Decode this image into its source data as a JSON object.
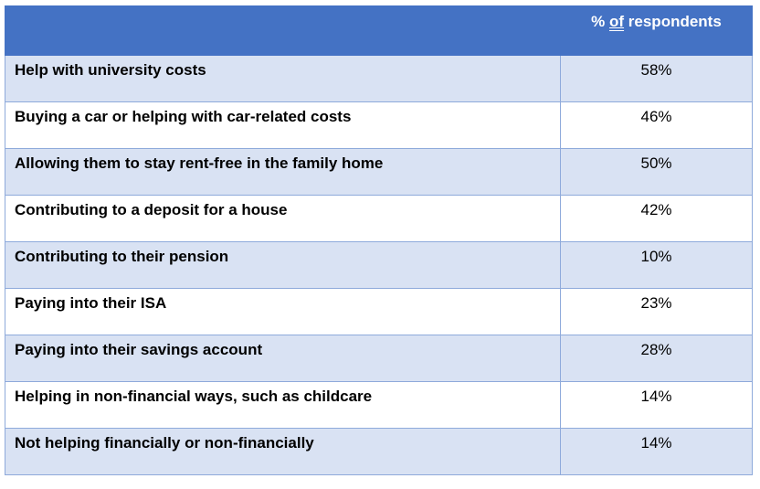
{
  "table": {
    "header": {
      "empty": "",
      "prefix": "% ",
      "of": "of",
      "suffix": " respondents"
    },
    "rows": [
      {
        "label": "Help with university costs",
        "value": "58%"
      },
      {
        "label": "Buying a car or helping with car-related costs",
        "value": "46%"
      },
      {
        "label": "Allowing them to stay rent-free in the family home",
        "value": "50%"
      },
      {
        "label": "Contributing to a deposit for a house",
        "value": "42%"
      },
      {
        "label": "Contributing to their pension",
        "value": "10%"
      },
      {
        "label": "Paying into their ISA",
        "value": "23%"
      },
      {
        "label": "Paying into their savings account",
        "value": "28%"
      },
      {
        "label": "Helping in non-financial ways, such as childcare",
        "value": "14%"
      },
      {
        "label": "Not helping financially or non-financially",
        "value": "14%"
      }
    ]
  },
  "colors": {
    "header_bg": "#4472c4",
    "band_bg": "#d9e2f3",
    "border": "#8eaadb"
  }
}
